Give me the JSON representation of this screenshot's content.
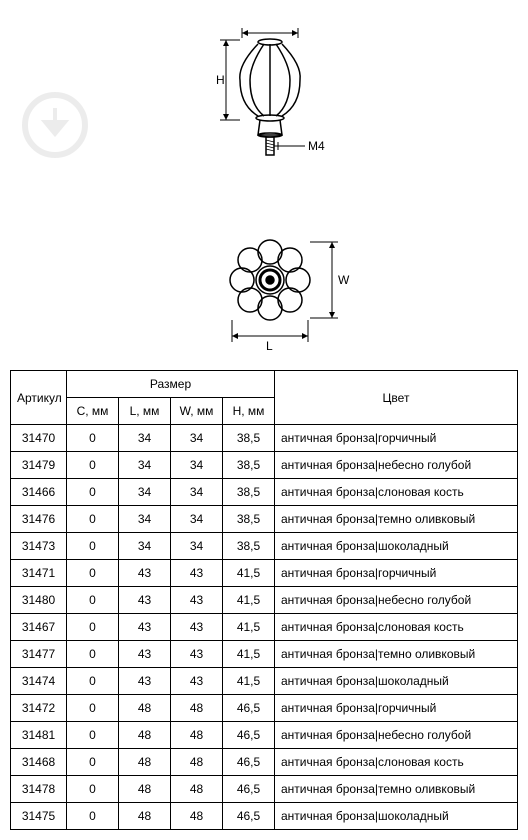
{
  "diagram": {
    "labels": {
      "H": "H",
      "M4": "M4",
      "W": "W",
      "L": "L"
    }
  },
  "table": {
    "headers": {
      "article": "Артикул",
      "size": "Размер",
      "c": "C, мм",
      "l": "L, мм",
      "w": "W, мм",
      "h": "H, мм",
      "color": "Цвет"
    },
    "rows": [
      {
        "art": "31470",
        "c": "0",
        "l": "34",
        "w": "34",
        "h": "38,5",
        "color": "античная бронза|горчичный"
      },
      {
        "art": "31479",
        "c": "0",
        "l": "34",
        "w": "34",
        "h": "38,5",
        "color": "античная бронза|небесно голубой"
      },
      {
        "art": "31466",
        "c": "0",
        "l": "34",
        "w": "34",
        "h": "38,5",
        "color": "античная бронза|слоновая кость"
      },
      {
        "art": "31476",
        "c": "0",
        "l": "34",
        "w": "34",
        "h": "38,5",
        "color": "античная бронза|темно оливковый"
      },
      {
        "art": "31473",
        "c": "0",
        "l": "34",
        "w": "34",
        "h": "38,5",
        "color": "античная бронза|шоколадный"
      },
      {
        "art": "31471",
        "c": "0",
        "l": "43",
        "w": "43",
        "h": "41,5",
        "color": "античная бронза|горчичный"
      },
      {
        "art": "31480",
        "c": "0",
        "l": "43",
        "w": "43",
        "h": "41,5",
        "color": "античная бронза|небесно голубой"
      },
      {
        "art": "31467",
        "c": "0",
        "l": "43",
        "w": "43",
        "h": "41,5",
        "color": "античная бронза|слоновая кость"
      },
      {
        "art": "31477",
        "c": "0",
        "l": "43",
        "w": "43",
        "h": "41,5",
        "color": "античная бронза|темно оливковый"
      },
      {
        "art": "31474",
        "c": "0",
        "l": "43",
        "w": "43",
        "h": "41,5",
        "color": "античная бронза|шоколадный"
      },
      {
        "art": "31472",
        "c": "0",
        "l": "48",
        "w": "48",
        "h": "46,5",
        "color": "античная бронза|горчичный"
      },
      {
        "art": "31481",
        "c": "0",
        "l": "48",
        "w": "48",
        "h": "46,5",
        "color": "античная бронза|небесно голубой"
      },
      {
        "art": "31468",
        "c": "0",
        "l": "48",
        "w": "48",
        "h": "46,5",
        "color": "античная бронза|слоновая кость"
      },
      {
        "art": "31478",
        "c": "0",
        "l": "48",
        "w": "48",
        "h": "46,5",
        "color": "античная бронза|темно оливковый"
      },
      {
        "art": "31475",
        "c": "0",
        "l": "48",
        "w": "48",
        "h": "46,5",
        "color": "античная бронза|шоколадный"
      }
    ]
  }
}
